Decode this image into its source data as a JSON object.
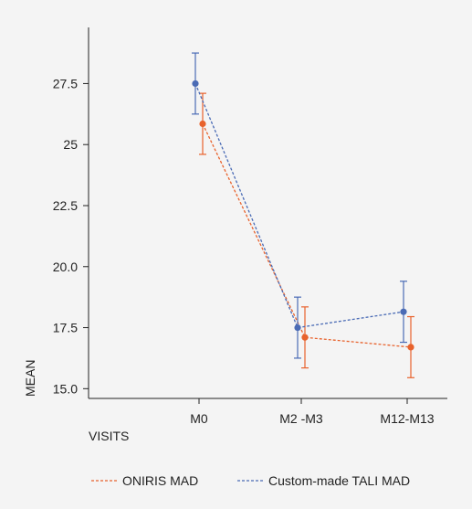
{
  "chart_data": {
    "type": "line",
    "categories": [
      "M0",
      "M2 -M3",
      "M12-M13"
    ],
    "xlabel": "VISITS",
    "ylabel": "MEAN",
    "ylim": [
      14.6,
      29.8
    ],
    "yticks": [
      "15.0",
      "17.5",
      "20.0",
      "22.5",
      "25",
      "27.5"
    ],
    "ytick_values": [
      15.0,
      17.5,
      20.0,
      22.5,
      25.0,
      27.5
    ],
    "grid": false,
    "legend_position": "bottom",
    "series": [
      {
        "name": "ONIRIS MAD",
        "color": "#e8622c",
        "values": [
          25.85,
          17.1,
          16.7
        ],
        "err_low": [
          24.6,
          15.85,
          15.45
        ],
        "err_high": [
          27.1,
          18.35,
          17.95
        ]
      },
      {
        "name": "Custom-made TALI MAD",
        "color": "#4a6bb5",
        "values": [
          27.5,
          17.5,
          18.15
        ],
        "err_low": [
          26.25,
          16.25,
          16.9
        ],
        "err_high": [
          28.75,
          18.75,
          19.4
        ]
      }
    ]
  }
}
